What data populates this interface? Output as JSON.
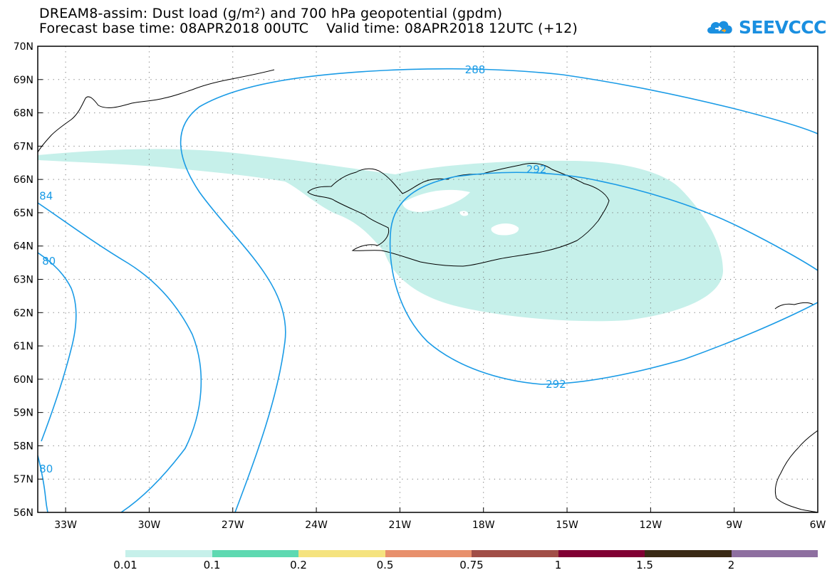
{
  "header": {
    "title_line1": "DREAM8-assim: Dust load (g/m²) and 700 hPa geopotential (gpdm)",
    "title_line2": "Forecast base time: 08APR2018 00UTC    Valid time: 08APR2018 12UTC (+12)"
  },
  "logo": {
    "text": "SEEVCCC",
    "icon": "cloud-icon",
    "color": "#1a8fe0",
    "accent": "#f5a623"
  },
  "map": {
    "lon_range": [
      -34,
      -6
    ],
    "lat_range": [
      56,
      70
    ],
    "grid": "dotted",
    "lat_labels": [
      "70N",
      "69N",
      "68N",
      "67N",
      "66N",
      "65N",
      "64N",
      "63N",
      "62N",
      "61N",
      "60N",
      "59N",
      "58N",
      "57N",
      "56N"
    ],
    "lon_labels": [
      "33W",
      "30W",
      "27W",
      "24W",
      "21W",
      "18W",
      "15W",
      "12W",
      "9W",
      "6W"
    ],
    "contour_color": "#1a9be6",
    "contour_labels": [
      {
        "text": "288",
        "lon": -18.3,
        "lat": 69.3
      },
      {
        "text": "292",
        "lon": -16.1,
        "lat": 66.3
      },
      {
        "text": "292",
        "lon": -15.4,
        "lat": 59.85
      },
      {
        "text": "84",
        "lon": -33.7,
        "lat": 65.5
      },
      {
        "text": "80",
        "lon": -33.6,
        "lat": 63.55
      },
      {
        "text": "80",
        "lon": -33.7,
        "lat": 57.3
      }
    ],
    "dust_fill_color": "#c6f0ea"
  },
  "legend": {
    "labels": [
      "0.01",
      "0.1",
      "0.2",
      "0.5",
      "0.75",
      "1",
      "1.5",
      "2"
    ],
    "colors": [
      "#c6f0ea",
      "#5ed9b1",
      "#f5e37f",
      "#e8906c",
      "#a14e47",
      "#800033",
      "#3a2a16",
      "#8e6fa0"
    ]
  }
}
